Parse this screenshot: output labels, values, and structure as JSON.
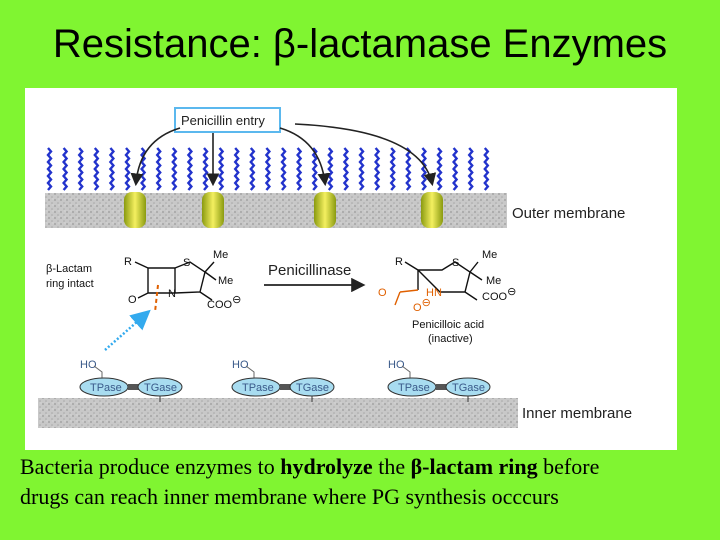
{
  "title": "Resistance: β-lactamase Enzymes",
  "figure": {
    "entry_label": "Penicillin entry",
    "outer_membrane": "Outer membrane",
    "inner_membrane": "Inner membrane",
    "intact_label": [
      "β-Lactam",
      "ring intact"
    ],
    "enzyme_label": "Penicillinase",
    "product_label": [
      "Penicilloic acid",
      "(inactive)"
    ],
    "left_structure": {
      "r": "R",
      "s": "S",
      "me1": "Me",
      "me2": "Me",
      "n": "N",
      "o": "O",
      "coo": "COO",
      "charge": "⊖"
    },
    "right_structure": {
      "r": "R",
      "s": "S",
      "me1": "Me",
      "me2": "Me",
      "hn": "HN",
      "o1": "O",
      "o2": "O",
      "coo": "COO",
      "charge": "⊖"
    },
    "complexes": [
      {
        "ho": "HO",
        "tpase": "TPase",
        "tgase": "TGase"
      },
      {
        "ho": "HO",
        "tpase": "TPase",
        "tgase": "TGase"
      },
      {
        "ho": "HO",
        "tpase": "TPase",
        "tgase": "TGase"
      }
    ]
  },
  "caption": {
    "line1": [
      "Bacteria produce enzymes to ",
      "hydrolyze",
      " the ",
      "β-lactam ring",
      " before"
    ],
    "line2": "drugs can reach inner membrane where PG synthesis occcurs"
  }
}
